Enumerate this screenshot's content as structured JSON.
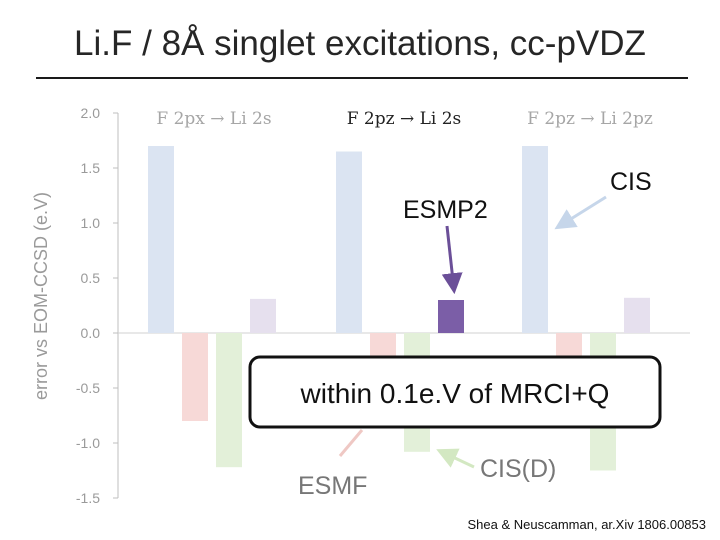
{
  "slide": {
    "title": "Li.F / 8Å singlet excitations, cc-pVDZ",
    "citation": "Shea & Neuscamman, ar.Xiv 1806.00853"
  },
  "chart_data": {
    "type": "bar",
    "title": "Li.F / 8Å singlet excitations, cc-pVDZ",
    "xlabel": "",
    "ylabel": "error vs EOM-CCSD (e.V)",
    "ylim": [
      -1.5,
      2.0
    ],
    "yticks": [
      2.0,
      1.5,
      1.0,
      0.5,
      0.0,
      -0.5,
      -1.0,
      -1.5
    ],
    "ytick_labels": [
      "2.0",
      "1.5",
      "1.0",
      "0.5",
      "0.0",
      "-0.5",
      "-1.0",
      "-1.5"
    ],
    "grid": false,
    "categories": [
      "F 2px → Li 2s",
      "F 2pz → Li 2s",
      "F 2pz → Li 2pz"
    ],
    "highlight_category": 1,
    "series": [
      {
        "name": "CIS",
        "values": [
          1.7,
          1.65,
          1.7
        ],
        "color": "#dbe4f2"
      },
      {
        "name": "ESMF",
        "values": [
          -0.8,
          -0.85,
          -0.85
        ],
        "color": "#f7d9d7"
      },
      {
        "name": "CIS(D)",
        "values": [
          -1.22,
          -1.08,
          -1.25
        ],
        "color": "#e3f0d9"
      },
      {
        "name": "ESMP2",
        "values": [
          0.31,
          0.3,
          0.32
        ],
        "color": "#e6e0ee"
      }
    ],
    "highlight_bar": {
      "series": "ESMP2",
      "category": 1,
      "color": "#7b5ea7"
    },
    "callouts": {
      "cis": "CIS",
      "esmp2": "ESMP2",
      "esmf": "ESMF",
      "cisd": "CIS(D)",
      "box": "within 0.1e.V of MRCI+Q"
    },
    "colors": {
      "tick_text": "#9a9a9a",
      "category_text": "#a6a6a6",
      "category_highlight": "#222222",
      "callout_text": "#111111",
      "arrow": "#c6d6ea",
      "arrow_esmp2": "#6b4f98",
      "arrow_esmf": "#efc8c4",
      "arrow_cisd": "#d3e8c2"
    }
  }
}
